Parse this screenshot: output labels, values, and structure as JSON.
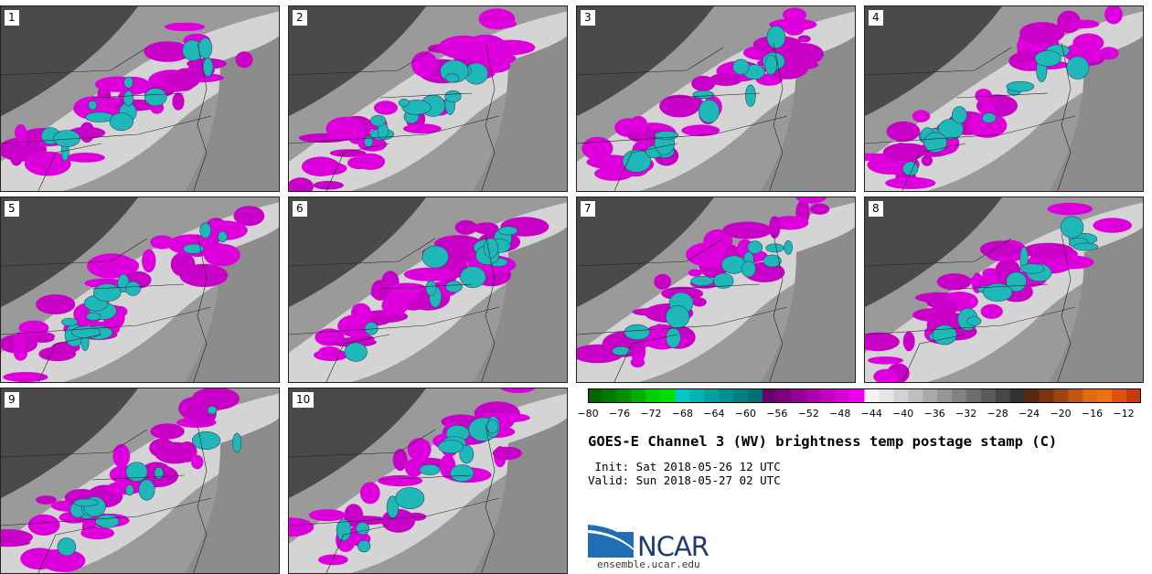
{
  "panels": [
    {
      "label": "1"
    },
    {
      "label": "2"
    },
    {
      "label": "3"
    },
    {
      "label": "4"
    },
    {
      "label": "5"
    },
    {
      "label": "6"
    },
    {
      "label": "7"
    },
    {
      "label": "8"
    },
    {
      "label": "9"
    },
    {
      "label": "10"
    }
  ],
  "colorbar": {
    "ticks": [
      "−80",
      "−76",
      "−72",
      "−68",
      "−64",
      "−60",
      "−56",
      "−52",
      "−48",
      "−44",
      "−40",
      "−36",
      "−32",
      "−28",
      "−24",
      "−20",
      "−16",
      "−12"
    ],
    "colors": [
      "#006400",
      "#007a00",
      "#009000",
      "#00b000",
      "#00d000",
      "#00e000",
      "#00c8c8",
      "#00b4b4",
      "#00a0a0",
      "#009090",
      "#008080",
      "#007070",
      "#6a006a",
      "#800080",
      "#960096",
      "#ac00ac",
      "#c200c2",
      "#d800d8",
      "#ee00ee",
      "#f5f5f5",
      "#e6e6e6",
      "#d2d2d2",
      "#bebebe",
      "#aaaaaa",
      "#969696",
      "#828282",
      "#6e6e6e",
      "#5a5a5a",
      "#464646",
      "#323232",
      "#5a2a10",
      "#7a3510",
      "#9c4412",
      "#c05514",
      "#e06a10",
      "#f07010",
      "#e05010",
      "#c83a08"
    ]
  },
  "title": "GOES-E Channel 3 (WV) brightness temp postage stamp (C)",
  "init": " Init: Sat 2018-05-26 12 UTC",
  "valid": "Valid: Sun 2018-05-27 02 UTC",
  "logo": {
    "text": "NCAR",
    "url": "ensemble.ucar.edu",
    "color_blue": "#1f6fb5",
    "color_dark": "#1f3a6e"
  }
}
